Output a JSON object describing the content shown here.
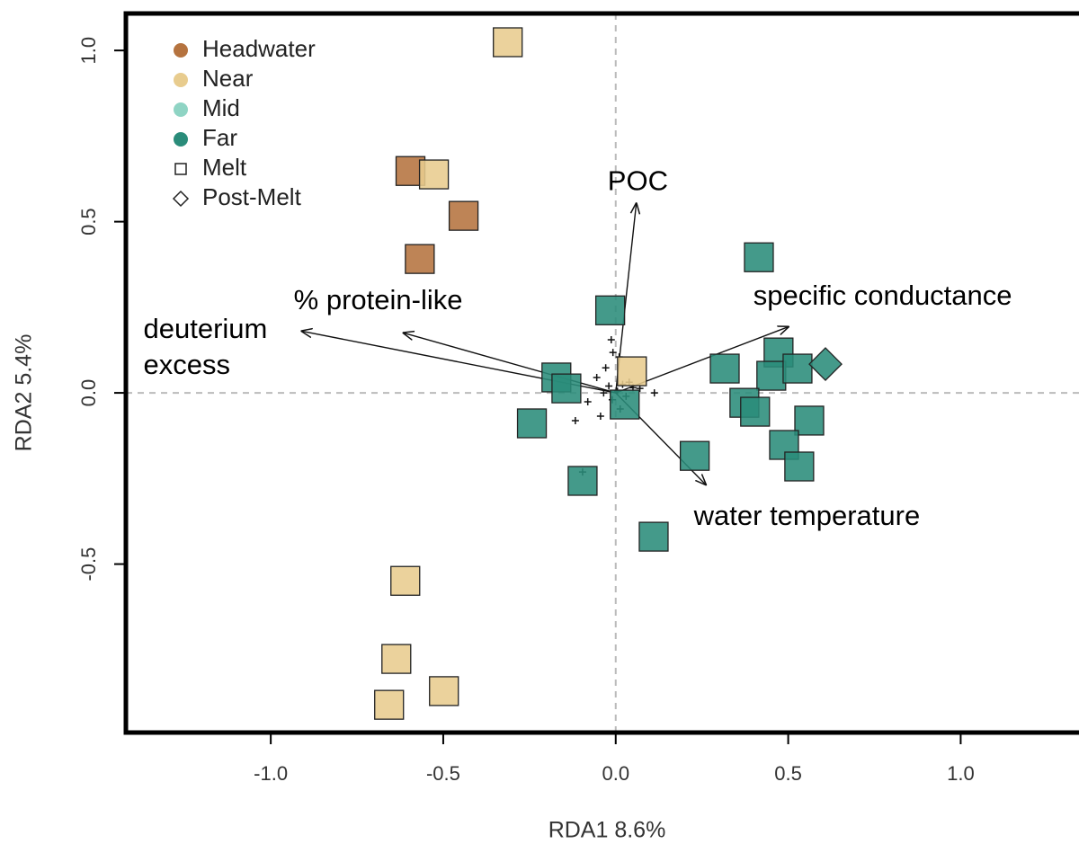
{
  "chart_data": {
    "type": "scatter",
    "x_label": "RDA1 8.6%",
    "y_label": "RDA2 5.4%",
    "xlim": [
      -1.42,
      1.343
    ],
    "ylim": [
      -0.992,
      1.108
    ],
    "xticks": [
      {
        "value": -1,
        "label": "-1.0"
      },
      -0.5,
      {
        "value": 0,
        "label": "0.0"
      },
      0.5,
      {
        "value": 1,
        "label": "1.0"
      }
    ],
    "yticks": [
      {
        "value": -0.5,
        "label": "-0.5"
      },
      {
        "value": 0,
        "label": "0.0"
      },
      {
        "value": 0.5,
        "label": "0.5"
      },
      {
        "value": 1,
        "label": "1.0"
      }
    ],
    "legend": {
      "sites": [
        {
          "name": "Headwater",
          "color": "#b5733f"
        },
        {
          "name": "Near",
          "color": "#e8cc8e"
        },
        {
          "name": "Mid",
          "color": "#8fd4c4"
        },
        {
          "name": "Far",
          "color": "#2a8c7a"
        }
      ],
      "seasons": [
        {
          "name": "Melt",
          "shape": "square"
        },
        {
          "name": "Post-Melt",
          "shape": "diamond"
        }
      ]
    },
    "series": [
      {
        "site": 0,
        "season": 0,
        "x": [
          -0.595,
          -0.441,
          -0.568
        ],
        "y": [
          0.648,
          0.517,
          0.391
        ]
      },
      {
        "site": 1,
        "season": 0,
        "x": [
          -0.313,
          -0.527,
          0.047,
          -0.61,
          -0.636,
          -0.498,
          -0.657
        ],
        "y": [
          1.024,
          0.638,
          0.063,
          -0.549,
          -0.777,
          -0.871,
          -0.911
        ]
      },
      {
        "site": 3,
        "season": 0,
        "x": [
          0.415,
          -0.016,
          0.472,
          0.316,
          0.451,
          0.527,
          -0.172,
          -0.143,
          0.373,
          0.404,
          0.561,
          -0.243,
          0.488,
          0.229,
          0.532,
          -0.096,
          0.11,
          0.026
        ],
        "y": [
          0.396,
          0.241,
          0.118,
          0.071,
          0.05,
          0.071,
          0.045,
          0.013,
          -0.029,
          -0.055,
          -0.081,
          -0.089,
          -0.152,
          -0.184,
          -0.215,
          -0.257,
          -0.42,
          -0.034
        ]
      },
      {
        "site": 3,
        "season": 1,
        "x": [
          0.608
        ],
        "y": [
          0.084
        ]
      }
    ],
    "species_scores": {
      "x": [
        -0.013,
        -0.008,
        0.01,
        -0.029,
        -0.055,
        0.039,
        0.07,
        0.112,
        -0.081,
        -0.044,
        -0.117,
        -0.096,
        0.013,
        -0.02,
        0.03,
        0.005,
        -0.035,
        0.05,
        0.02,
        -0.01
      ],
      "y": [
        0.155,
        0.118,
        0.105,
        0.073,
        0.045,
        0.031,
        0.013,
        0.0,
        -0.026,
        -0.068,
        -0.081,
        -0.231,
        -0.047,
        0.02,
        -0.01,
        0.005,
        0.0,
        0.015,
        0.025,
        -0.02
      ]
    },
    "arrows": [
      {
        "label": [
          "POC"
        ],
        "x": 0.06,
        "y": 0.556
      },
      {
        "label": [
          "specific conductance"
        ],
        "x": 0.503,
        "y": 0.194
      },
      {
        "label": [
          "water temperature"
        ],
        "x": 0.263,
        "y": -0.27
      },
      {
        "label": [
          "deuterium",
          "excess"
        ],
        "x": -0.913,
        "y": 0.181
      },
      {
        "label": [
          "% protein-like"
        ],
        "x": -0.618,
        "y": 0.176
      }
    ]
  }
}
